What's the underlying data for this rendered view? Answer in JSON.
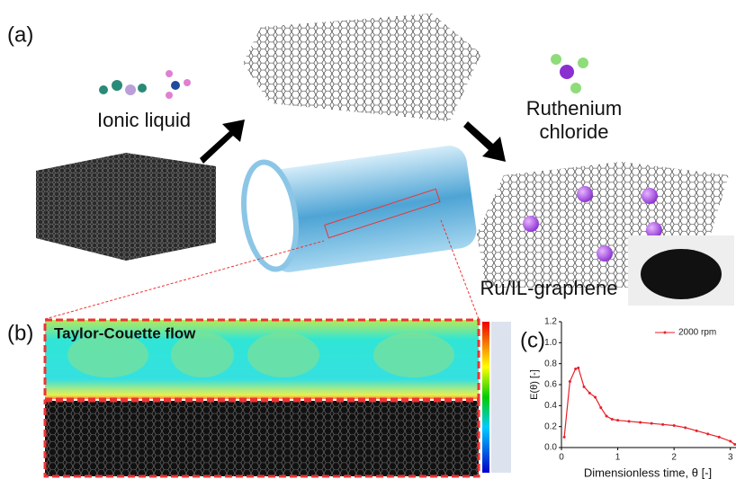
{
  "panels": {
    "a": "(a)",
    "b": "(b)",
    "c": "(c)"
  },
  "labels": {
    "ionic_liquid": "Ionic liquid",
    "ruthenium": [
      "Ruthenium",
      "chloride"
    ],
    "product": "Ru/IL-graphene",
    "flow": "Taylor-Couette flow"
  },
  "chart_data": {
    "type": "line",
    "x_label": "Dimensionless time, θ [-]",
    "y_label": "E(θ) [-]",
    "x": [
      0.05,
      0.15,
      0.25,
      0.3,
      0.4,
      0.5,
      0.6,
      0.7,
      0.8,
      0.9,
      1.0,
      1.2,
      1.4,
      1.6,
      1.8,
      2.0,
      2.2,
      2.4,
      2.6,
      2.8,
      3.0,
      3.08
    ],
    "series": [
      {
        "name": "2000 rpm",
        "color": "#e8202a",
        "values": [
          0.1,
          0.63,
          0.75,
          0.76,
          0.58,
          0.52,
          0.48,
          0.38,
          0.3,
          0.27,
          0.26,
          0.25,
          0.24,
          0.23,
          0.22,
          0.21,
          0.19,
          0.16,
          0.13,
          0.1,
          0.06,
          0.03
        ]
      }
    ],
    "xlim": [
      0,
      3.1
    ],
    "ylim": [
      0,
      1.2
    ],
    "xticks": [
      0,
      1,
      2,
      3
    ],
    "yticks": [
      {
        "value": 0,
        "label": "0.0"
      },
      0.2,
      0.4,
      0.6,
      0.8,
      {
        "value": 1,
        "label": "1.0"
      },
      1.2
    ],
    "legend": "upper right"
  }
}
